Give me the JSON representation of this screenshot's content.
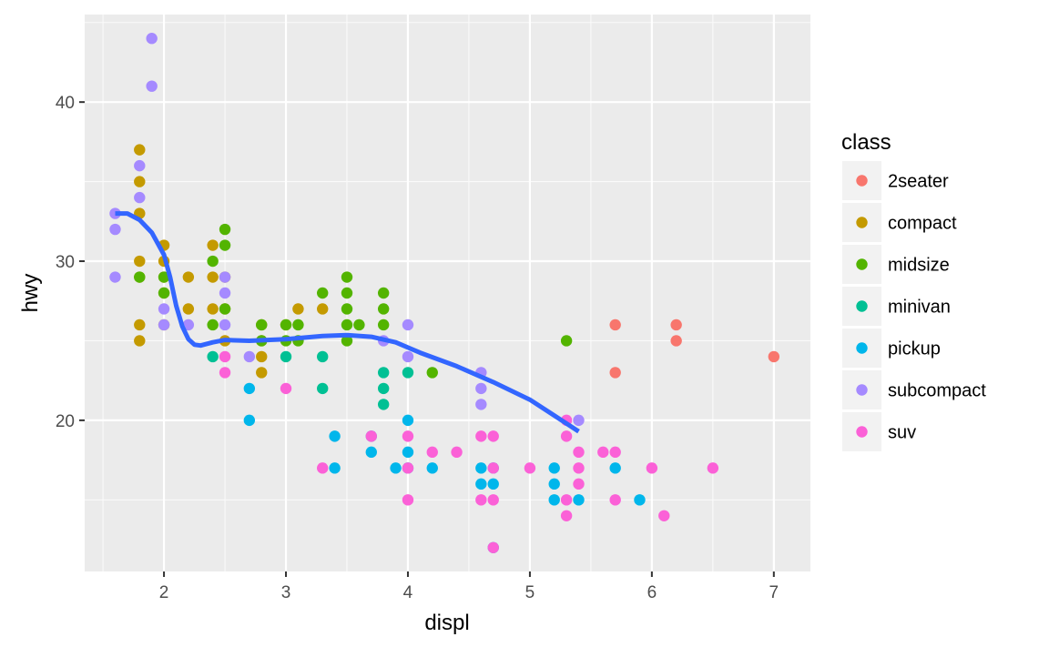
{
  "chart_data": {
    "type": "scatter",
    "xlabel": "displ",
    "ylabel": "hwy",
    "xlim": [
      1.35,
      7.3
    ],
    "ylim": [
      10.5,
      45.5
    ],
    "xticks": [
      2,
      3,
      4,
      5,
      6,
      7
    ],
    "xtick_labels": [
      "2",
      "3",
      "4",
      "5",
      "6",
      "7"
    ],
    "yticks": [
      20,
      30,
      40
    ],
    "ytick_labels": [
      "20",
      "30",
      "40"
    ],
    "grid": true,
    "legend": {
      "title": "class",
      "position": "right"
    },
    "series": [
      {
        "name": "2seater",
        "color": "#F8766D",
        "points": [
          [
            5.7,
            26
          ],
          [
            5.7,
            23
          ],
          [
            6.2,
            26
          ],
          [
            6.2,
            25
          ],
          [
            7.0,
            24
          ]
        ]
      },
      {
        "name": "compact",
        "color": "#C49A00",
        "points": [
          [
            1.8,
            37
          ],
          [
            1.8,
            35
          ],
          [
            1.8,
            33
          ],
          [
            1.8,
            30
          ],
          [
            1.8,
            29
          ],
          [
            1.8,
            26
          ],
          [
            1.8,
            25
          ],
          [
            2.0,
            31
          ],
          [
            2.0,
            30
          ],
          [
            2.0,
            29
          ],
          [
            2.0,
            28
          ],
          [
            2.0,
            26
          ],
          [
            2.2,
            29
          ],
          [
            2.2,
            27
          ],
          [
            2.4,
            31
          ],
          [
            2.4,
            29
          ],
          [
            2.4,
            27
          ],
          [
            2.5,
            29
          ],
          [
            2.5,
            27
          ],
          [
            2.5,
            25
          ],
          [
            2.8,
            26
          ],
          [
            2.8,
            25
          ],
          [
            2.8,
            24
          ],
          [
            2.8,
            23
          ],
          [
            3.0,
            26
          ],
          [
            3.1,
            27
          ],
          [
            3.3,
            27
          ]
        ]
      },
      {
        "name": "midsize",
        "color": "#53B400",
        "points": [
          [
            1.8,
            29
          ],
          [
            2.0,
            29
          ],
          [
            2.0,
            28
          ],
          [
            2.4,
            30
          ],
          [
            2.4,
            26
          ],
          [
            2.5,
            32
          ],
          [
            2.5,
            31
          ],
          [
            2.5,
            27
          ],
          [
            2.8,
            26
          ],
          [
            2.8,
            25
          ],
          [
            3.0,
            26
          ],
          [
            3.0,
            25
          ],
          [
            3.1,
            26
          ],
          [
            3.1,
            25
          ],
          [
            3.3,
            28
          ],
          [
            3.5,
            29
          ],
          [
            3.5,
            28
          ],
          [
            3.5,
            27
          ],
          [
            3.5,
            26
          ],
          [
            3.5,
            25
          ],
          [
            3.6,
            26
          ],
          [
            3.8,
            28
          ],
          [
            3.8,
            27
          ],
          [
            3.8,
            26
          ],
          [
            4.2,
            23
          ],
          [
            5.3,
            25
          ]
        ]
      },
      {
        "name": "minivan",
        "color": "#00C094",
        "points": [
          [
            2.4,
            24
          ],
          [
            3.0,
            24
          ],
          [
            3.3,
            24
          ],
          [
            3.3,
            22
          ],
          [
            3.8,
            23
          ],
          [
            3.8,
            22
          ],
          [
            3.8,
            21
          ],
          [
            4.0,
            23
          ]
        ]
      },
      {
        "name": "pickup",
        "color": "#00B6EB",
        "points": [
          [
            2.7,
            22
          ],
          [
            2.7,
            20
          ],
          [
            3.4,
            19
          ],
          [
            3.4,
            17
          ],
          [
            3.7,
            19
          ],
          [
            3.7,
            18
          ],
          [
            3.9,
            17
          ],
          [
            4.0,
            20
          ],
          [
            4.0,
            18
          ],
          [
            4.0,
            17
          ],
          [
            4.2,
            17
          ],
          [
            4.6,
            17
          ],
          [
            4.6,
            16
          ],
          [
            4.7,
            17
          ],
          [
            4.7,
            16
          ],
          [
            4.7,
            12
          ],
          [
            5.2,
            17
          ],
          [
            5.2,
            16
          ],
          [
            5.2,
            15
          ],
          [
            5.4,
            15
          ],
          [
            5.7,
            17
          ],
          [
            5.9,
            15
          ]
        ]
      },
      {
        "name": "subcompact",
        "color": "#A58AFF",
        "points": [
          [
            1.6,
            33
          ],
          [
            1.6,
            32
          ],
          [
            1.6,
            29
          ],
          [
            1.8,
            36
          ],
          [
            1.8,
            34
          ],
          [
            1.9,
            44
          ],
          [
            1.9,
            41
          ],
          [
            2.0,
            27
          ],
          [
            2.0,
            26
          ],
          [
            2.2,
            26
          ],
          [
            2.5,
            29
          ],
          [
            2.5,
            28
          ],
          [
            2.5,
            26
          ],
          [
            2.7,
            24
          ],
          [
            3.8,
            25
          ],
          [
            4.0,
            26
          ],
          [
            4.0,
            24
          ],
          [
            4.6,
            23
          ],
          [
            4.6,
            22
          ],
          [
            4.6,
            21
          ],
          [
            5.4,
            20
          ]
        ]
      },
      {
        "name": "suv",
        "color": "#FB61D7",
        "points": [
          [
            2.5,
            24
          ],
          [
            2.5,
            23
          ],
          [
            3.0,
            22
          ],
          [
            3.3,
            17
          ],
          [
            3.7,
            19
          ],
          [
            4.0,
            19
          ],
          [
            4.0,
            17
          ],
          [
            4.0,
            15
          ],
          [
            4.2,
            18
          ],
          [
            4.4,
            18
          ],
          [
            4.6,
            19
          ],
          [
            4.6,
            15
          ],
          [
            4.7,
            19
          ],
          [
            4.7,
            17
          ],
          [
            4.7,
            15
          ],
          [
            4.7,
            12
          ],
          [
            5.0,
            17
          ],
          [
            5.3,
            20
          ],
          [
            5.3,
            19
          ],
          [
            5.3,
            15
          ],
          [
            5.3,
            14
          ],
          [
            5.4,
            18
          ],
          [
            5.4,
            17
          ],
          [
            5.4,
            16
          ],
          [
            5.6,
            18
          ],
          [
            5.7,
            18
          ],
          [
            5.7,
            15
          ],
          [
            6.0,
            17
          ],
          [
            6.1,
            14
          ],
          [
            6.5,
            17
          ]
        ]
      }
    ],
    "smooth": {
      "color": "#3366FF",
      "points": [
        [
          1.6,
          33.0
        ],
        [
          1.7,
          33.0
        ],
        [
          1.8,
          32.6
        ],
        [
          1.9,
          31.8
        ],
        [
          2.0,
          30.4
        ],
        [
          2.05,
          29.0
        ],
        [
          2.1,
          27.2
        ],
        [
          2.15,
          25.9
        ],
        [
          2.2,
          25.1
        ],
        [
          2.25,
          24.75
        ],
        [
          2.3,
          24.7
        ],
        [
          2.4,
          24.9
        ],
        [
          2.5,
          25.05
        ],
        [
          2.7,
          25.0
        ],
        [
          3.0,
          25.1
        ],
        [
          3.3,
          25.3
        ],
        [
          3.5,
          25.35
        ],
        [
          3.7,
          25.25
        ],
        [
          3.9,
          24.9
        ],
        [
          4.1,
          24.25
        ],
        [
          4.4,
          23.4
        ],
        [
          4.7,
          22.4
        ],
        [
          5.0,
          21.3
        ],
        [
          5.2,
          20.3
        ],
        [
          5.4,
          19.3
        ]
      ]
    }
  }
}
